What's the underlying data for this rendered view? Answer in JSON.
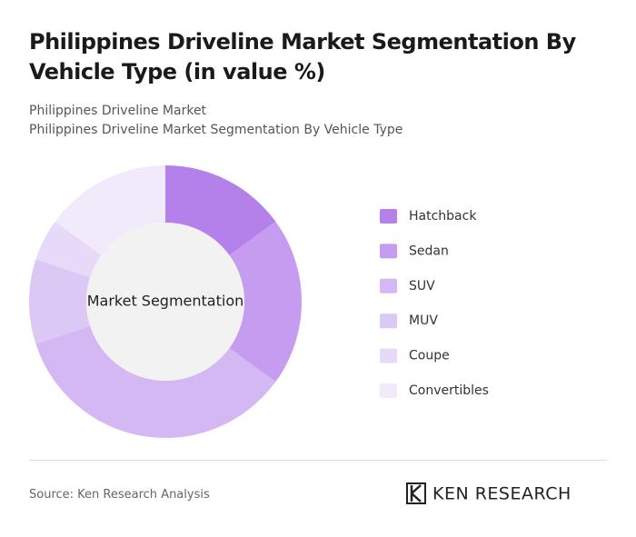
{
  "chart_data": {
    "type": "pie",
    "title": "Philippines Driveline Market Segmentation By Vehicle Type (in value %)",
    "subtitle": [
      "Philippines Driveline Market",
      "Philippines Driveline Market Segmentation By Vehicle Type"
    ],
    "center_label": "Market Segmentation",
    "categories": [
      "Hatchback",
      "Sedan",
      "SUV",
      "MUV",
      "Coupe",
      "Convertibles"
    ],
    "values": [
      15,
      20,
      35,
      10,
      5,
      15
    ],
    "colors": [
      "#b481ea",
      "#c59cef",
      "#d4b8f3",
      "#dcc8f5",
      "#e7d9f8",
      "#f1eafb"
    ],
    "source": "Source: Ken Research Analysis",
    "brand": "KEN RESEARCH"
  }
}
